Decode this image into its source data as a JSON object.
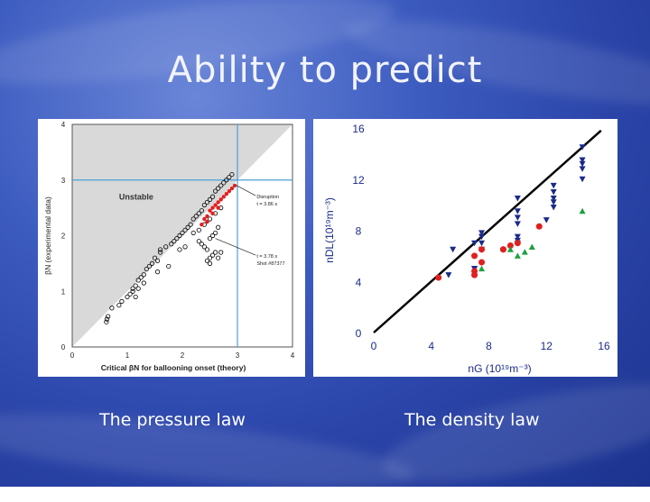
{
  "slide": {
    "title": "Ability to predict",
    "left_caption": "The pressure law",
    "right_caption": "The density law"
  },
  "colors": {
    "background": "#2f4bb0",
    "grid_line": "#4aa0d8",
    "open_point": "#000000",
    "red_point": "#e02020",
    "blue_triangle": "#1a2a8a",
    "green_triangle": "#20a040"
  },
  "chart_data": [
    {
      "type": "scatter",
      "xlabel": "Critical βN for ballooning onset (theory)",
      "ylabel": "βN (experimental data)",
      "xlim": [
        0,
        4
      ],
      "ylim": [
        0,
        4
      ],
      "xticks": [
        0,
        1,
        2,
        3,
        4
      ],
      "yticks": [
        0,
        1,
        2,
        3,
        4
      ],
      "reference_lines": {
        "x": 3,
        "y": 3
      },
      "region_label": "Unstable",
      "annotations": [
        {
          "lines": [
            "Disruption",
            "t = 3.86 s"
          ],
          "x": 3.35,
          "y": 2.67
        },
        {
          "lines": [
            "t = 3.78 s",
            "Shot #87377"
          ],
          "x": 3.35,
          "y": 1.6
        }
      ],
      "series": [
        {
          "marker": "open-circle",
          "x": [
            0.62,
            0.63,
            0.65,
            0.72,
            0.85,
            0.9,
            1.0,
            1.05,
            1.1,
            1.1,
            1.15,
            1.15,
            1.2,
            1.25,
            1.3,
            1.35,
            1.4,
            1.45,
            1.5,
            1.55,
            1.6,
            1.6,
            1.7,
            1.8,
            1.85,
            1.9,
            1.95,
            2.0,
            2.05,
            2.1,
            2.15,
            2.2,
            2.25,
            2.3,
            2.3,
            2.35,
            2.4,
            2.4,
            2.45,
            2.5,
            2.5,
            2.55,
            2.6,
            2.6,
            2.65,
            2.7,
            2.7,
            2.75,
            2.8,
            2.85,
            2.9,
            2.5,
            2.55,
            2.6,
            2.45,
            2.4,
            2.35,
            2.65,
            2.7,
            2.5,
            2.55,
            2.6,
            2.65,
            2.3,
            2.2,
            2.45,
            2.5,
            1.95,
            2.05,
            1.55,
            1.75,
            1.3,
            1.2
          ],
          "y": [
            0.45,
            0.5,
            0.55,
            0.7,
            0.75,
            0.82,
            0.9,
            0.95,
            1.0,
            1.05,
            1.1,
            0.9,
            1.2,
            1.25,
            1.3,
            1.4,
            1.45,
            1.5,
            1.6,
            1.55,
            1.7,
            1.75,
            1.8,
            1.85,
            1.9,
            1.95,
            2.0,
            2.05,
            2.1,
            2.15,
            2.2,
            2.3,
            2.35,
            2.4,
            2.1,
            2.45,
            2.55,
            2.2,
            2.6,
            2.65,
            2.3,
            2.7,
            2.8,
            2.4,
            2.85,
            2.9,
            2.5,
            2.95,
            3.0,
            3.05,
            3.1,
            1.6,
            1.65,
            1.7,
            1.75,
            1.8,
            1.85,
            1.6,
            1.7,
            1.95,
            2.0,
            2.05,
            2.15,
            1.9,
            2.05,
            1.55,
            1.5,
            1.75,
            1.8,
            1.35,
            1.45,
            1.15,
            1.05
          ]
        },
        {
          "marker": "red-dot",
          "x": [
            2.35,
            2.4,
            2.45,
            2.5,
            2.55,
            2.6,
            2.65,
            2.7,
            2.75,
            2.8,
            2.85,
            2.9,
            2.95,
            2.45,
            2.55,
            2.65
          ],
          "y": [
            2.2,
            2.3,
            2.35,
            2.45,
            2.5,
            2.55,
            2.6,
            2.65,
            2.7,
            2.75,
            2.8,
            2.85,
            2.9,
            2.25,
            2.4,
            2.5
          ]
        }
      ]
    },
    {
      "type": "scatter",
      "xlabel": "nG (10¹⁹m⁻³)",
      "ylabel": "nDL(10¹⁹m⁻³)",
      "xlim": [
        0,
        16
      ],
      "ylim": [
        0,
        16
      ],
      "xticks": [
        0,
        4,
        8,
        12,
        16
      ],
      "yticks": [
        0,
        4,
        8,
        12,
        16
      ],
      "reference_line": [
        [
          0,
          0
        ],
        [
          15.8,
          15.8
        ]
      ],
      "series": [
        {
          "marker": "blue-down-triangle",
          "x": [
            5.5,
            5.2,
            7.0,
            7.0,
            7.5,
            7.5,
            7.5,
            7.5,
            10.0,
            10.0,
            10.0,
            10.0,
            10.0,
            10.0,
            10.0,
            12.5,
            12.5,
            12.5,
            12.5,
            12.5,
            14.5,
            14.5,
            14.5,
            14.5,
            14.5,
            12.0,
            7.0
          ],
          "y": [
            6.5,
            4.5,
            5.0,
            7.0,
            6.5,
            7.0,
            7.5,
            7.8,
            10.5,
            9.5,
            9.0,
            8.5,
            7.5,
            7.0,
            7.2,
            11.5,
            11.0,
            10.5,
            10.2,
            9.8,
            14.5,
            13.5,
            13.2,
            12.8,
            12.0,
            8.8,
            5.0
          ]
        },
        {
          "marker": "red-dot",
          "x": [
            4.5,
            7.0,
            7.0,
            7.0,
            7.5,
            7.5,
            9.0,
            9.0,
            9.5,
            10.0,
            11.5
          ],
          "y": [
            4.3,
            4.8,
            4.5,
            6.0,
            6.5,
            5.5,
            6.5,
            6.5,
            6.8,
            7.0,
            8.3
          ]
        },
        {
          "marker": "green-up-triangle",
          "x": [
            7.5,
            9.5,
            10.0,
            10.5,
            11.0,
            14.5
          ],
          "y": [
            5.0,
            6.5,
            6.0,
            6.3,
            6.7,
            9.5
          ]
        }
      ]
    }
  ]
}
